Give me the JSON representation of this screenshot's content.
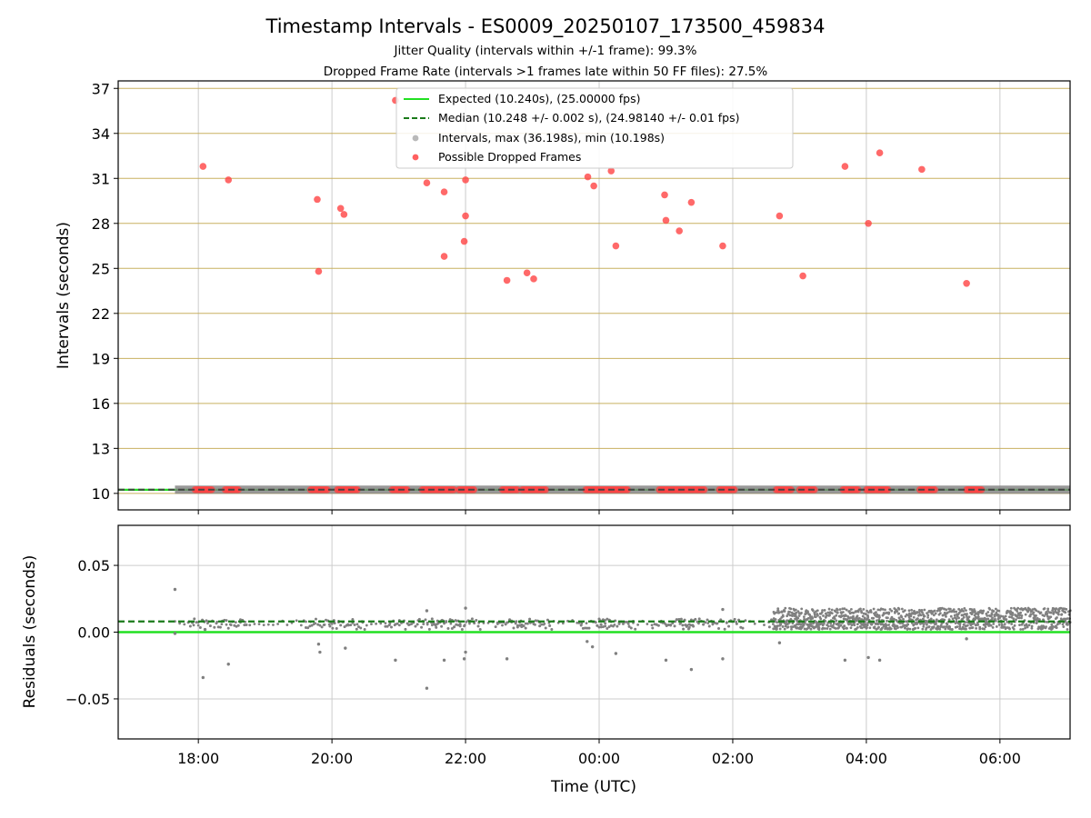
{
  "header": {
    "title": "Timestamp Intervals - ES0009_20250107_173500_459834",
    "subtitle1": "Jitter Quality (intervals within +/-1 frame): 99.3%",
    "subtitle2": "Dropped Frame Rate (intervals >1 frames late within 50 FF files): 27.5%"
  },
  "colors": {
    "expected": "#22e022",
    "median": "#1a7a1a",
    "intervals": "#808080",
    "dropped": "#ff4444",
    "hgrid_top": "#c8b060",
    "grid": "#cccccc"
  },
  "chart_data": [
    {
      "type": "scatter",
      "ylabel": "Intervals (seconds)",
      "x_unit": "hours since 17:00 UTC on 2025-01-07",
      "xlim": [
        -0.2,
        14.05
      ],
      "ylim": [
        8.9,
        37.5
      ],
      "yticks": [
        10,
        13,
        16,
        19,
        22,
        25,
        28,
        31,
        34,
        37
      ],
      "ytick_labels": [
        "10",
        "13",
        "16",
        "19",
        "22",
        "25",
        "28",
        "31",
        "34",
        "37"
      ],
      "xticks": [
        1,
        3,
        5,
        7,
        9,
        11,
        13
      ],
      "grid": true,
      "legend_position": "top-center",
      "legend": {
        "expected": "Expected (10.240s), (25.00000 fps)",
        "median": "Median (10.248 +/- 0.002 s), (24.98140 +/- 0.01 fps)",
        "intervals": "Intervals, max (36.198s), min (10.198s)",
        "dropped": "Possible Dropped Frames"
      },
      "expected_line": 10.24,
      "median_line": 10.248,
      "interval_baseline": 10.248,
      "interval_range": [
        0.65,
        14.05
      ],
      "dropped_points": [
        [
          1.07,
          31.8
        ],
        [
          1.45,
          30.9
        ],
        [
          2.78,
          29.6
        ],
        [
          2.8,
          24.8
        ],
        [
          3.13,
          29.0
        ],
        [
          3.18,
          28.6
        ],
        [
          3.95,
          36.2
        ],
        [
          4.42,
          30.7
        ],
        [
          4.68,
          30.1
        ],
        [
          4.68,
          25.8
        ],
        [
          4.98,
          26.8
        ],
        [
          5.0,
          28.5
        ],
        [
          5.0,
          30.9
        ],
        [
          5.62,
          24.2
        ],
        [
          5.92,
          24.7
        ],
        [
          6.02,
          24.3
        ],
        [
          6.83,
          31.1
        ],
        [
          6.92,
          30.5
        ],
        [
          7.18,
          31.5
        ],
        [
          7.25,
          26.5
        ],
        [
          7.98,
          29.9
        ],
        [
          8.0,
          28.2
        ],
        [
          8.2,
          27.5
        ],
        [
          8.38,
          29.4
        ],
        [
          8.85,
          26.5
        ],
        [
          9.7,
          28.5
        ],
        [
          10.05,
          24.5
        ],
        [
          10.68,
          31.8
        ],
        [
          11.03,
          28.0
        ],
        [
          11.2,
          32.7
        ],
        [
          11.83,
          31.6
        ],
        [
          12.5,
          24.0
        ]
      ],
      "dropped_baseline_ranges": [
        [
          0.95,
          1.2
        ],
        [
          1.4,
          1.62
        ],
        [
          2.68,
          2.95
        ],
        [
          3.08,
          3.4
        ],
        [
          3.9,
          4.15
        ],
        [
          4.35,
          4.6
        ],
        [
          4.6,
          4.85
        ],
        [
          4.9,
          5.15
        ],
        [
          5.55,
          5.8
        ],
        [
          5.85,
          6.22
        ],
        [
          6.8,
          7.1
        ],
        [
          7.1,
          7.45
        ],
        [
          7.9,
          8.3
        ],
        [
          8.3,
          8.6
        ],
        [
          8.8,
          9.05
        ],
        [
          9.65,
          9.9
        ],
        [
          10.0,
          10.25
        ],
        [
          10.65,
          10.9
        ],
        [
          11.0,
          11.35
        ],
        [
          11.8,
          12.05
        ],
        [
          12.5,
          12.75
        ]
      ]
    },
    {
      "type": "scatter",
      "ylabel": "Residuals (seconds)",
      "xlabel": "Time (UTC)",
      "x_unit": "hours since 17:00 UTC on 2025-01-07",
      "xlim": [
        -0.2,
        14.05
      ],
      "ylim": [
        -0.08,
        0.08
      ],
      "yticks": [
        0.05,
        0.0,
        -0.05
      ],
      "ytick_labels": [
        "0.05",
        "0.00",
        "−0.05"
      ],
      "xticks": [
        1,
        3,
        5,
        7,
        9,
        11,
        13
      ],
      "xtick_labels": [
        "18:00",
        "20:00",
        "22:00",
        "00:00",
        "02:00",
        "04:00",
        "06:00"
      ],
      "grid": true,
      "expected_line": 0.0,
      "median_line": 0.008,
      "sparse_region": [
        0.65,
        9.6
      ],
      "dense_region": [
        9.6,
        14.05
      ],
      "outliers": [
        [
          0.65,
          0.032
        ],
        [
          0.65,
          -0.001
        ],
        [
          1.07,
          -0.034
        ],
        [
          1.1,
          0.002
        ],
        [
          1.45,
          -0.024
        ],
        [
          2.8,
          -0.009
        ],
        [
          2.82,
          -0.015
        ],
        [
          3.2,
          -0.012
        ],
        [
          3.95,
          -0.021
        ],
        [
          4.42,
          -0.042
        ],
        [
          4.42,
          0.016
        ],
        [
          4.68,
          -0.021
        ],
        [
          4.98,
          -0.02
        ],
        [
          5.0,
          -0.015
        ],
        [
          5.0,
          0.018
        ],
        [
          5.62,
          -0.02
        ],
        [
          6.82,
          -0.007
        ],
        [
          6.9,
          -0.011
        ],
        [
          7.25,
          -0.016
        ],
        [
          8.0,
          -0.021
        ],
        [
          8.38,
          -0.028
        ],
        [
          8.85,
          -0.02
        ],
        [
          8.85,
          0.017
        ],
        [
          9.7,
          -0.008
        ],
        [
          10.68,
          -0.021
        ],
        [
          11.03,
          -0.019
        ],
        [
          11.2,
          -0.021
        ],
        [
          12.5,
          -0.005
        ]
      ]
    }
  ]
}
